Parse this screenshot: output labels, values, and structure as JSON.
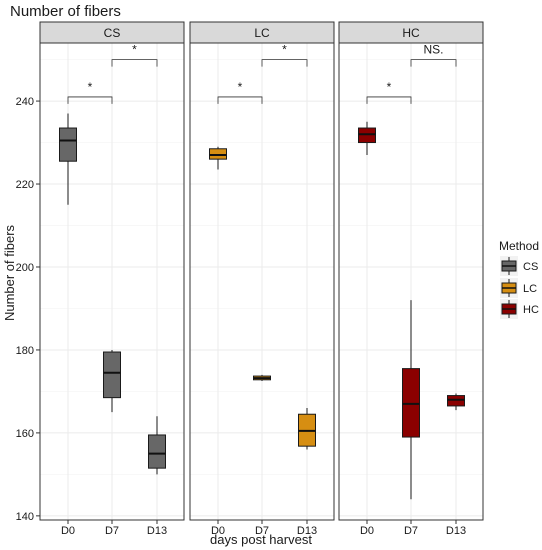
{
  "chart_data": {
    "type": "boxplot",
    "title": "Number of fibers",
    "xlabel": "days post harvest",
    "ylabel": "Number of fibers",
    "categories": [
      "D0",
      "D7",
      "D13"
    ],
    "ylim": [
      139,
      254
    ],
    "yticks": [
      140,
      160,
      180,
      200,
      220,
      240
    ],
    "grid": true,
    "legend": {
      "title": "Method",
      "position": "right",
      "entries": [
        {
          "label": "CS",
          "color": "#676767"
        },
        {
          "label": "LC",
          "color": "#d68e12"
        },
        {
          "label": "HC",
          "color": "#8b0000"
        }
      ]
    },
    "panels": [
      {
        "strip": "CS",
        "color": "#676767",
        "boxes": [
          {
            "x": "D0",
            "min": 215,
            "q1": 225.5,
            "median": 230.5,
            "q3": 233.5,
            "max": 237
          },
          {
            "x": "D7",
            "min": 165,
            "q1": 168.5,
            "median": 174.5,
            "q3": 179.5,
            "max": 180
          },
          {
            "x": "D13",
            "min": 150,
            "q1": 151.5,
            "median": 155,
            "q3": 159.5,
            "max": 164
          }
        ],
        "brackets": [
          {
            "from": "D0",
            "to": "D7",
            "label": "*"
          },
          {
            "from": "D7",
            "to": "D13",
            "label": "*"
          }
        ]
      },
      {
        "strip": "LC",
        "color": "#d68e12",
        "boxes": [
          {
            "x": "D0",
            "min": 223.5,
            "q1": 226,
            "median": 227,
            "q3": 228.5,
            "max": 229
          },
          {
            "x": "D7",
            "min": 172.5,
            "q1": 172.8,
            "median": 173.2,
            "q3": 173.7,
            "max": 174
          },
          {
            "x": "D13",
            "min": 156,
            "q1": 156.8,
            "median": 160.5,
            "q3": 164.5,
            "max": 166
          }
        ],
        "brackets": [
          {
            "from": "D0",
            "to": "D7",
            "label": "*"
          },
          {
            "from": "D7",
            "to": "D13",
            "label": "*"
          }
        ]
      },
      {
        "strip": "HC",
        "color": "#8b0000",
        "boxes": [
          {
            "x": "D0",
            "min": 227,
            "q1": 230,
            "median": 232,
            "q3": 233.5,
            "max": 235
          },
          {
            "x": "D7",
            "min": 144,
            "q1": 159,
            "median": 167,
            "q3": 175.5,
            "max": 192
          },
          {
            "x": "D13",
            "min": 165.5,
            "q1": 166.5,
            "median": 168,
            "q3": 169,
            "max": 169.5
          }
        ],
        "brackets": [
          {
            "from": "D0",
            "to": "D7",
            "label": "*"
          },
          {
            "from": "D7",
            "to": "D13",
            "label": "NS."
          }
        ]
      }
    ]
  }
}
